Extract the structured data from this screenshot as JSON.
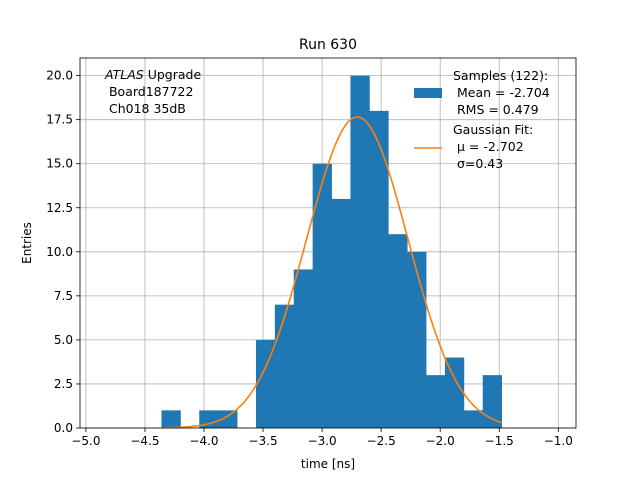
{
  "chart_data": {
    "type": "bar",
    "title": "Run 630",
    "xlabel": "time [ns]",
    "ylabel": "Entries",
    "xlim": [
      -5.05,
      -0.85
    ],
    "ylim": [
      0,
      21
    ],
    "xticks": [
      -5.0,
      -4.5,
      -4.0,
      -3.5,
      -3.0,
      -2.5,
      -2.0,
      -1.5,
      -1.0
    ],
    "xtick_labels": [
      "−5.0",
      "−4.5",
      "−4.0",
      "−3.5",
      "−3.0",
      "−2.5",
      "−2.0",
      "−1.5",
      "−1.0"
    ],
    "yticks": [
      0.0,
      2.5,
      5.0,
      7.5,
      10.0,
      12.5,
      15.0,
      17.5,
      20.0
    ],
    "ytick_labels": [
      "0.0",
      "2.5",
      "5.0",
      "7.5",
      "10.0",
      "12.5",
      "15.0",
      "17.5",
      "20.0"
    ],
    "grid": true,
    "legend_position": "top-right",
    "histogram": {
      "bin_edges": [
        -4.36,
        -4.2,
        -4.04,
        -3.88,
        -3.72,
        -3.56,
        -3.4,
        -3.24,
        -3.08,
        -2.92,
        -2.76,
        -2.6,
        -2.44,
        -2.28,
        -2.12,
        -1.96,
        -1.8,
        -1.64,
        -1.48
      ],
      "counts": [
        1,
        0,
        1,
        1,
        0,
        5,
        7,
        9,
        15,
        13,
        20,
        18,
        11,
        10,
        3,
        4,
        1,
        3
      ],
      "color": "#1f77b4",
      "legend_lines": [
        "Samples (122):",
        " Mean = -2.704",
        " RMS = 0.479"
      ]
    },
    "gaussian_fit": {
      "mu": -2.702,
      "sigma": 0.43,
      "amplitude": 17.65,
      "x_range": [
        -4.36,
        -1.48
      ],
      "color": "#ff7f0e",
      "legend_lines": [
        "Gaussian Fit:",
        " μ = -2.702",
        " σ=0.43"
      ]
    },
    "annotation": {
      "line1_italic": "ATLAS",
      "line1_rest": " Upgrade",
      "line2": " Board187722",
      "line3": " Ch018 35dB"
    }
  }
}
